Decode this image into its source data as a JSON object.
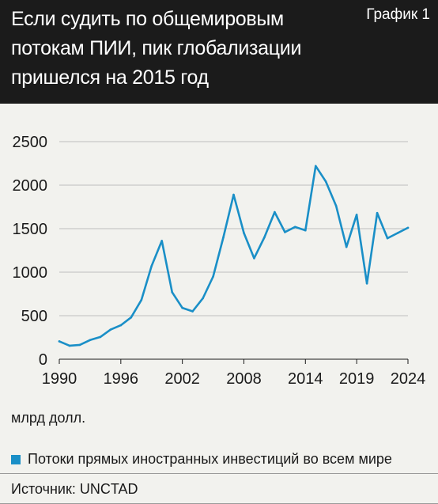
{
  "header": {
    "title": "Если судить по общемировым\nпотокам ПИИ, пик глобализации\nпришелся на 2015 год",
    "badge": "График 1"
  },
  "unit_label": "млрд долл.",
  "legend_label": "Потоки прямых иностранных инвестиций во всем мире",
  "source": "Источник: UNCTAD",
  "colors": {
    "series": "#1a8fc7",
    "header_bg": "#1b1b1b",
    "background": "#f2f2ee"
  },
  "chart_data": {
    "type": "line",
    "title": "Если судить по общемировым потокам ПИИ, пик глобализации пришелся на 2015 год",
    "xlabel": "",
    "ylabel": "млрд долл.",
    "xlim": [
      1990,
      2024
    ],
    "ylim": [
      0,
      2500
    ],
    "x_ticks": [
      1990,
      1996,
      2002,
      2008,
      2014,
      2019,
      2024
    ],
    "y_ticks": [
      0,
      500,
      1000,
      1500,
      2000,
      2500
    ],
    "grid": "horizontal",
    "legend": "bottom",
    "series": [
      {
        "name": "Потоки прямых иностранных инвестиций во всем мире",
        "x": [
          1990,
          1991,
          1992,
          1993,
          1994,
          1995,
          1996,
          1997,
          1998,
          1999,
          2000,
          2001,
          2002,
          2003,
          2004,
          2005,
          2006,
          2007,
          2008,
          2009,
          2010,
          2011,
          2012,
          2013,
          2014,
          2015,
          2016,
          2017,
          2018,
          2019,
          2020,
          2021,
          2022,
          2023,
          2024
        ],
        "values": [
          205,
          155,
          165,
          220,
          255,
          340,
          390,
          480,
          680,
          1070,
          1360,
          770,
          590,
          550,
          700,
          950,
          1400,
          1890,
          1450,
          1160,
          1400,
          1690,
          1460,
          1520,
          1480,
          2220,
          2040,
          1760,
          1290,
          1660,
          870,
          1680,
          1390,
          1450,
          1510
        ]
      }
    ]
  }
}
